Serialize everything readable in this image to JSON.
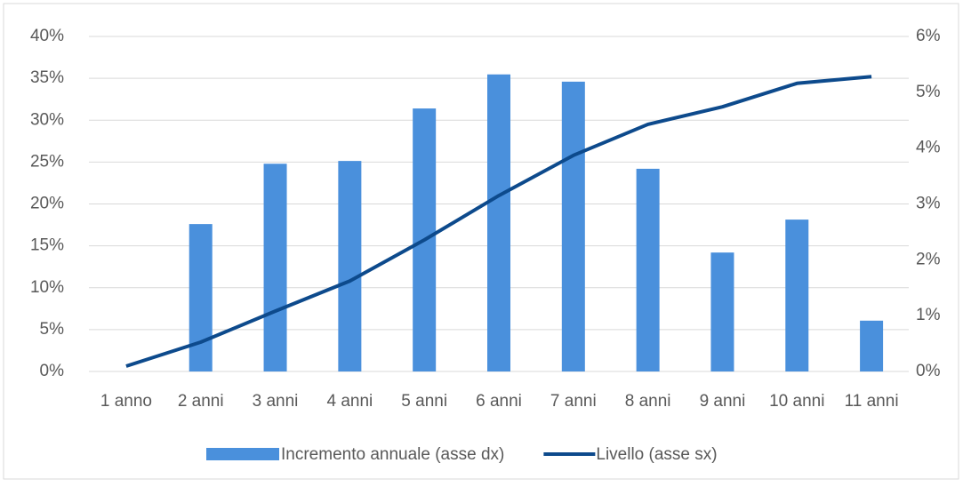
{
  "chart_data": {
    "type": "bar-line",
    "categories": [
      "1 anno",
      "2 anni",
      "3 anni",
      "4 anni",
      "5 anni",
      "6 anni",
      "7 anni",
      "8 anni",
      "9 anni",
      "10 anni",
      "11 anni"
    ],
    "series": [
      {
        "name": "Incremento annuale (asse dx)",
        "type": "bar",
        "axis": "y2",
        "color": "#4a90dc",
        "values": [
          0,
          2.64,
          3.72,
          3.77,
          4.71,
          5.32,
          5.19,
          3.63,
          2.13,
          2.72,
          0.91
        ]
      },
      {
        "name": "Livello (asse sx)",
        "type": "line",
        "axis": "y",
        "color": "#0d4a8c",
        "values": [
          0.64,
          3.5,
          7.2,
          10.8,
          15.7,
          21.0,
          25.8,
          29.5,
          31.6,
          34.4,
          35.2
        ]
      }
    ],
    "ylim": [
      0,
      40
    ],
    "yticks": [
      {
        "value": 0,
        "label": "0%"
      },
      {
        "value": 5,
        "label": "5%"
      },
      {
        "value": 10,
        "label": "10%"
      },
      {
        "value": 15,
        "label": "15%"
      },
      {
        "value": 20,
        "label": "20%"
      },
      {
        "value": 25,
        "label": "25%"
      },
      {
        "value": 30,
        "label": "30%"
      },
      {
        "value": 35,
        "label": "35%"
      },
      {
        "value": 40,
        "label": "40%"
      }
    ],
    "y2lim": [
      0,
      6
    ],
    "y2ticks": [
      {
        "value": 0,
        "label": "0%"
      },
      {
        "value": 1,
        "label": "1%"
      },
      {
        "value": 2,
        "label": "2%"
      },
      {
        "value": 3,
        "label": "3%"
      },
      {
        "value": 4,
        "label": "4%"
      },
      {
        "value": 5,
        "label": "5%"
      },
      {
        "value": 6,
        "label": "6%"
      }
    ],
    "grid": true,
    "legend": "bottom"
  }
}
